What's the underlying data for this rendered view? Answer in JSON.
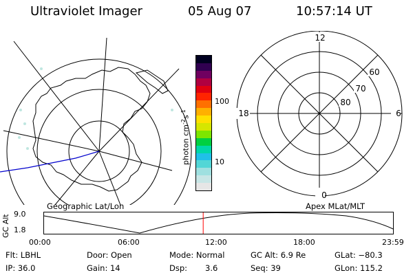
{
  "header": {
    "instrument": "Ultraviolet Imager",
    "date": "05 Aug 07",
    "time": "10:57:14 UT"
  },
  "left_panel": {
    "caption": "Geographic Lat/Lon"
  },
  "right_panel": {
    "caption": "Apex MLat/MLT",
    "mlt_labels": {
      "top": "12",
      "left": "18",
      "right": "6",
      "bottom": "0"
    },
    "mlat_labels": [
      "60",
      "70",
      "80"
    ]
  },
  "colorbar": {
    "unit_label": "photon cm",
    "unit_sup1": "-2",
    "unit_mid": "s",
    "unit_sup2": "-1",
    "ticks": [
      "100",
      "10"
    ],
    "colors": [
      "#e6e6e6",
      "#c8e6e6",
      "#9fe0e0",
      "#52d6d6",
      "#20c0e8",
      "#00d7a8",
      "#00d040",
      "#7ee600",
      "#d6e600",
      "#ffe000",
      "#ffb000",
      "#ff7000",
      "#ff2400",
      "#e00010",
      "#b00040",
      "#700060",
      "#300050",
      "#000020"
    ]
  },
  "timeline": {
    "axis_label": "GC Alt",
    "y_ticks": [
      "9.0",
      "1.8"
    ],
    "x_ticks": [
      "00:00",
      "06:00",
      "12:00",
      "18:00",
      "23:59"
    ],
    "current_time_fraction": 0.456,
    "marker_color": "#ff0000"
  },
  "status": {
    "row1": {
      "flt": "Flt: LBHL",
      "door": "Door: Open",
      "mode": "Mode: Normal",
      "gc_alt": "GC Alt: 6.9 Re",
      "glat": "GLat: −80.3"
    },
    "row2": {
      "ip": "IP: 36.0",
      "gain": "Gain: 14",
      "dsp_label": "Dsp:",
      "dsp_value": "3.6",
      "seq": "Seq: 39",
      "glon": "GLon: 115.2"
    }
  }
}
